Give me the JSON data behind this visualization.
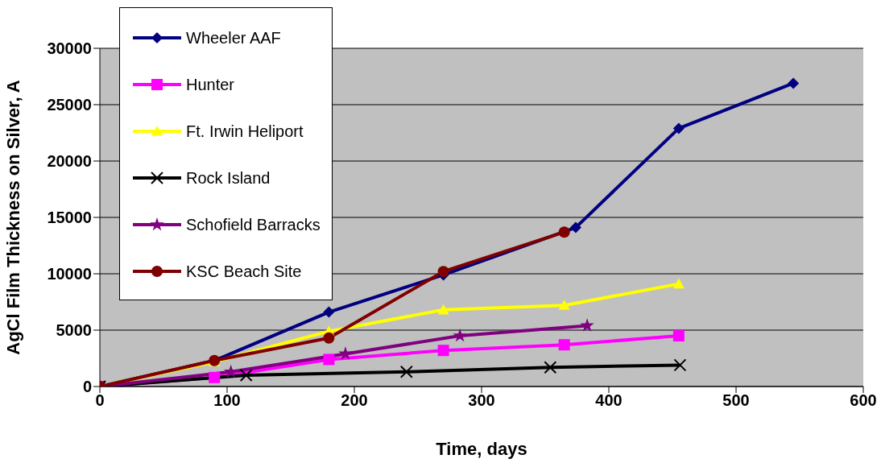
{
  "chart_data": {
    "type": "line",
    "xlabel": "Time, days",
    "ylabel": "AgCl Film Thickness on Silver, A",
    "xlim": [
      0,
      600
    ],
    "xticks": [
      0,
      100,
      200,
      300,
      400,
      500,
      600
    ],
    "ylim": [
      0,
      30000
    ],
    "yticks": [
      0,
      5000,
      10000,
      15000,
      20000,
      25000,
      30000
    ],
    "grid": "y",
    "legend": "top left",
    "line_style": "solid",
    "series": [
      {
        "name": "Wheeler AAF",
        "color": "#000080",
        "marker": "diamond",
        "x": [
          0,
          90,
          180,
          270,
          374,
          455,
          545
        ],
        "values": [
          0,
          2300,
          6600,
          9900,
          14100,
          22900,
          26900
        ]
      },
      {
        "name": "Hunter",
        "color": "#ff00ff",
        "marker": "square",
        "x": [
          0,
          90,
          180,
          270,
          365,
          455
        ],
        "values": [
          0,
          800,
          2400,
          3200,
          3700,
          4500
        ]
      },
      {
        "name": "Ft. Irwin Heliport",
        "color": "#ffff00",
        "marker": "triangle",
        "x": [
          0,
          90,
          180,
          270,
          365,
          455
        ],
        "values": [
          0,
          2200,
          4900,
          6800,
          7200,
          9100
        ]
      },
      {
        "name": "Rock Island",
        "color": "#000000",
        "marker": "cross",
        "x": [
          0,
          115,
          241,
          354,
          456
        ],
        "values": [
          0,
          1000,
          1300,
          1700,
          1900
        ]
      },
      {
        "name": "Schofield Barracks",
        "color": "#800080",
        "marker": "star",
        "x": [
          0,
          103,
          193,
          283,
          383
        ],
        "values": [
          0,
          1300,
          2900,
          4500,
          5400
        ]
      },
      {
        "name": "KSC Beach Site",
        "color": "#800000",
        "marker": "circle",
        "x": [
          0,
          90,
          180,
          270,
          365
        ],
        "values": [
          0,
          2300,
          4300,
          10200,
          13700
        ]
      }
    ]
  }
}
